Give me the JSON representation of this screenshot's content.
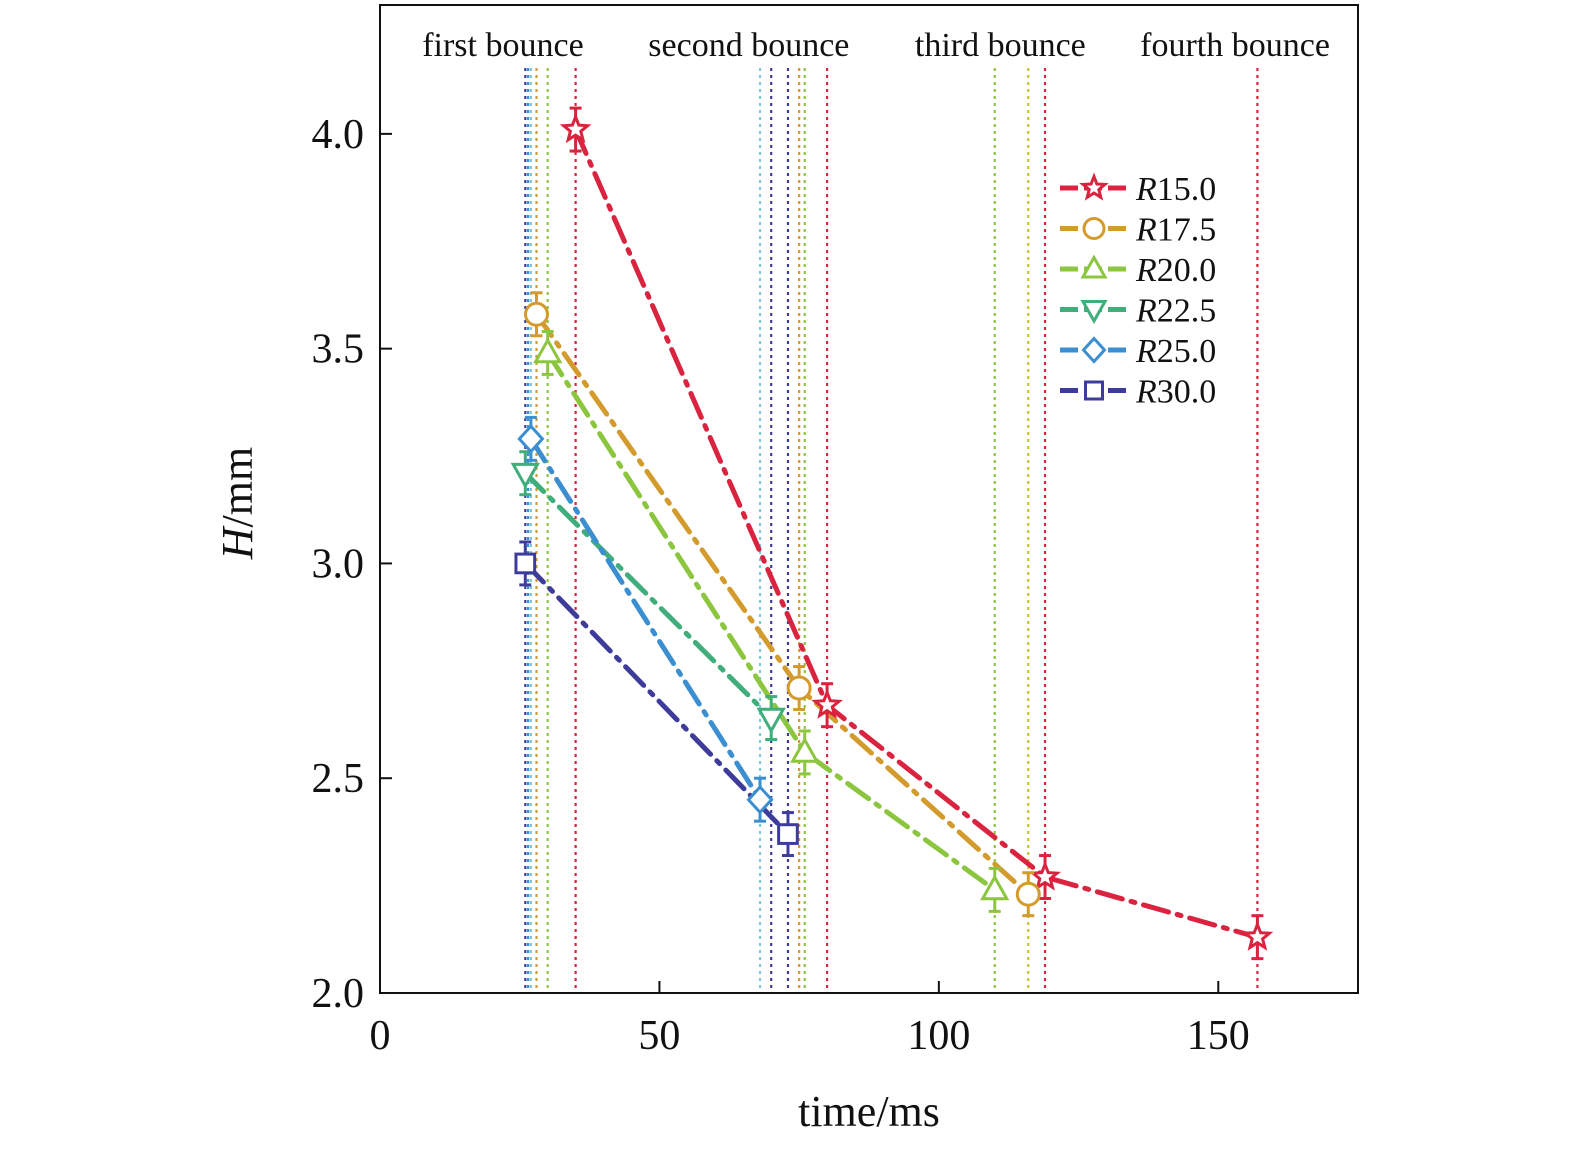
{
  "chart_data": {
    "type": "line",
    "xlabel": "time/ms",
    "ylabel_italic": "H",
    "ylabel_rest": "/mm",
    "xlim": [
      0,
      175
    ],
    "ylim": [
      2.0,
      4.3
    ],
    "x_ticks": [
      0,
      50,
      100,
      150
    ],
    "x_tick_labels": [
      "0",
      "50",
      "100",
      "150"
    ],
    "y_ticks": [
      2.0,
      2.5,
      3.0,
      3.5,
      4.0
    ],
    "y_tick_labels": [
      "2.0",
      "2.5",
      "3.0",
      "3.5",
      "4.0"
    ],
    "grid": false,
    "legend_position": "top-right",
    "annotations": [
      {
        "text": "first bounce",
        "x": 22
      },
      {
        "text": "second bounce",
        "x": 66
      },
      {
        "text": "third bounce",
        "x": 111
      },
      {
        "text": "fourth bounce",
        "x": 153
      }
    ],
    "series": [
      {
        "name": "R15.0",
        "name_italic": "R",
        "name_rest": "15.0",
        "color": "#d9233f",
        "marker": "star",
        "points": [
          {
            "x": 35,
            "y": 4.01,
            "err": 0.05
          },
          {
            "x": 80,
            "y": 2.67,
            "err": 0.05
          },
          {
            "x": 119,
            "y": 2.27,
            "err": 0.05
          },
          {
            "x": 157,
            "y": 2.13,
            "err": 0.05
          }
        ]
      },
      {
        "name": "R17.5",
        "name_italic": "R",
        "name_rest": "17.5",
        "color": "#d39a2c",
        "marker": "circle",
        "points": [
          {
            "x": 28,
            "y": 3.58,
            "err": 0.05
          },
          {
            "x": 75,
            "y": 2.71,
            "err": 0.05
          },
          {
            "x": 116,
            "y": 2.23,
            "err": 0.05
          }
        ]
      },
      {
        "name": "R20.0",
        "name_italic": "R",
        "name_rest": "20.0",
        "color": "#8cc63f",
        "marker": "triangle-up",
        "points": [
          {
            "x": 30,
            "y": 3.49,
            "err": 0.05
          },
          {
            "x": 76,
            "y": 2.56,
            "err": 0.05
          },
          {
            "x": 110,
            "y": 2.24,
            "err": 0.05
          }
        ]
      },
      {
        "name": "R22.5",
        "name_italic": "R",
        "name_rest": "22.5",
        "color": "#3fae7a",
        "marker": "triangle-down",
        "points": [
          {
            "x": 26,
            "y": 3.21,
            "err": 0.05
          },
          {
            "x": 70,
            "y": 2.64,
            "err": 0.05
          }
        ]
      },
      {
        "name": "R25.0",
        "name_italic": "R",
        "name_rest": "25.0",
        "color": "#3b8fd0",
        "marker": "diamond",
        "points": [
          {
            "x": 27,
            "y": 3.29,
            "err": 0.05
          },
          {
            "x": 68,
            "y": 2.45,
            "err": 0.05
          }
        ]
      },
      {
        "name": "R30.0",
        "name_italic": "R",
        "name_rest": "30.0",
        "color": "#3e3c9a",
        "marker": "square",
        "points": [
          {
            "x": 26,
            "y": 3.0,
            "err": 0.05
          },
          {
            "x": 73,
            "y": 2.37,
            "err": 0.05
          }
        ]
      }
    ],
    "vertical_guides": [
      {
        "x": 26,
        "color": "#3e3c9a"
      },
      {
        "x": 26.5,
        "color": "#3b8fd0"
      },
      {
        "x": 27,
        "color": "#7fc8d8"
      },
      {
        "x": 28,
        "color": "#d39a2c"
      },
      {
        "x": 30,
        "color": "#8cc63f"
      },
      {
        "x": 35,
        "color": "#d9233f"
      },
      {
        "x": 68,
        "color": "#7fc8d8"
      },
      {
        "x": 70,
        "color": "#3e3c9a"
      },
      {
        "x": 73,
        "color": "#3e3c9a"
      },
      {
        "x": 75,
        "color": "#d39a2c"
      },
      {
        "x": 76,
        "color": "#8cc63f"
      },
      {
        "x": 80,
        "color": "#d9233f"
      },
      {
        "x": 110,
        "color": "#8cc63f"
      },
      {
        "x": 116,
        "color": "#c8c030"
      },
      {
        "x": 119,
        "color": "#d9233f"
      },
      {
        "x": 157,
        "color": "#d9233f"
      }
    ]
  }
}
